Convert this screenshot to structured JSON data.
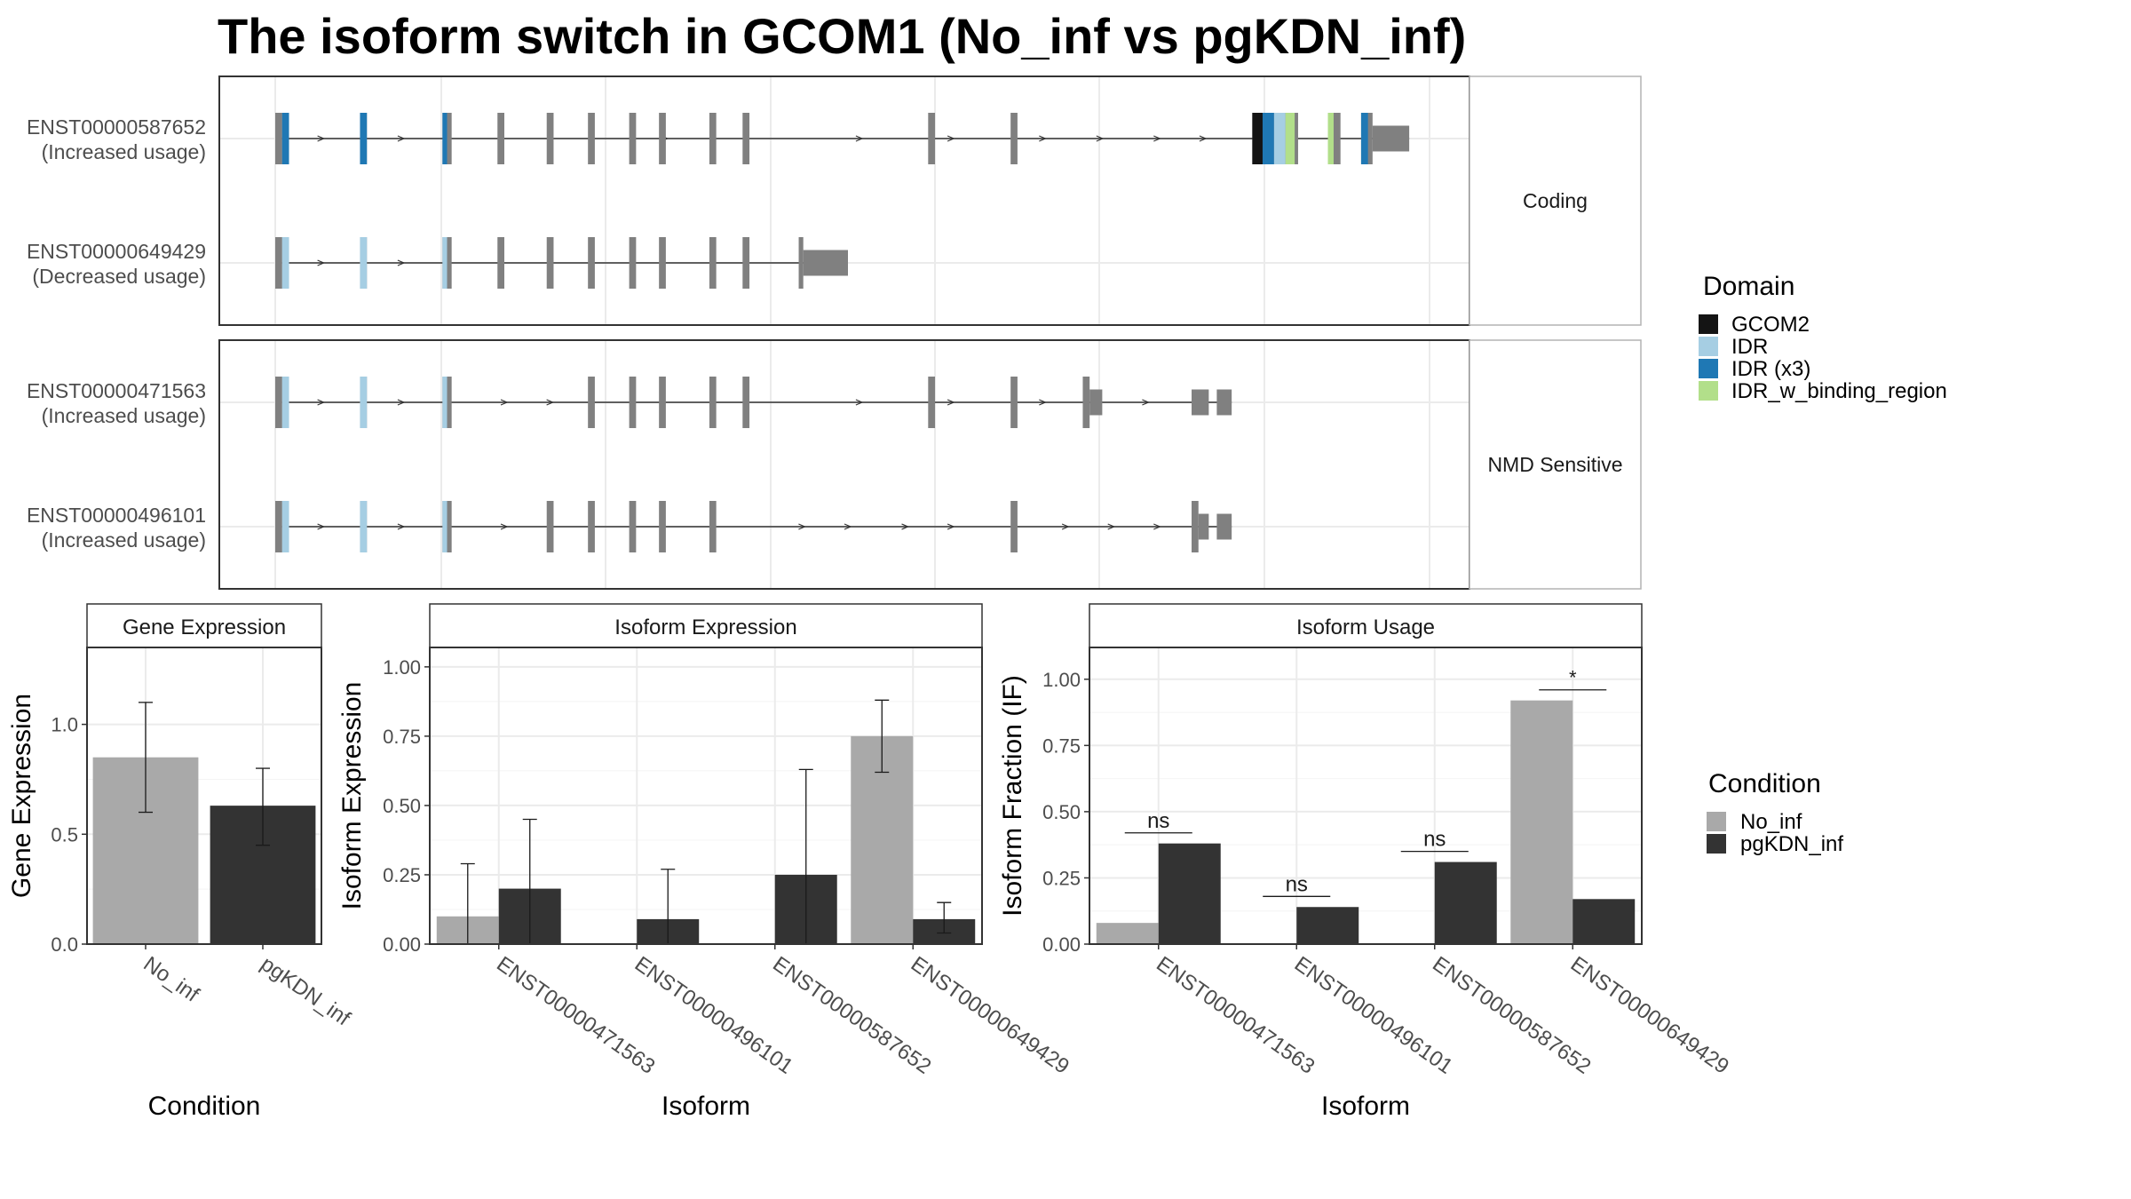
{
  "title": "The isoform switch in GCOM1 (No_inf vs pgKDN_inf)",
  "colors": {
    "No_inf": "#a9a9a9",
    "pgKDN_inf": "#333333",
    "exon": "#808080",
    "GCOM2": "#141414",
    "IDR": "#a6cee3",
    "IDR (x3)": "#1f78b4",
    "IDR_w_binding_region": "#b2df8a"
  },
  "structure": {
    "facets": [
      {
        "label": "Coding",
        "transcripts": [
          {
            "id": "ENST00000587652",
            "usage": "(Increased usage)",
            "exons": [
              [
                0.0,
                0.006,
                "full"
              ],
              [
                0.006,
                0.012,
                "full"
              ],
              [
                0.074,
                0.08,
                "full"
              ],
              [
                0.146,
                0.154,
                "full"
              ],
              [
                0.194,
                0.2,
                "full"
              ],
              [
                0.237,
                0.243,
                "full"
              ],
              [
                0.273,
                0.279,
                "full"
              ],
              [
                0.309,
                0.315,
                "full"
              ],
              [
                0.335,
                0.341,
                "full"
              ],
              [
                0.379,
                0.385,
                "full"
              ],
              [
                0.408,
                0.414,
                "full"
              ],
              [
                0.57,
                0.576,
                "full"
              ],
              [
                0.642,
                0.648,
                "full"
              ],
              [
                0.853,
                0.893,
                "full"
              ],
              [
                0.919,
                0.93,
                "full"
              ],
              [
                0.948,
                0.958,
                "full"
              ],
              [
                0.958,
                0.99,
                "utr"
              ]
            ],
            "domains": [
              [
                0.006,
                0.012,
                "IDR (x3)"
              ],
              [
                0.074,
                0.08,
                "IDR (x3)"
              ],
              [
                0.146,
                0.15,
                "IDR (x3)"
              ],
              [
                0.853,
                0.862,
                "GCOM2"
              ],
              [
                0.862,
                0.872,
                "IDR (x3)"
              ],
              [
                0.872,
                0.882,
                "IDR"
              ],
              [
                0.882,
                0.89,
                "IDR_w_binding_region"
              ],
              [
                0.919,
                0.924,
                "IDR_w_binding_region"
              ],
              [
                0.948,
                0.954,
                "IDR (x3)"
              ]
            ],
            "arrows": [
              0.04,
              0.11,
              0.34,
              0.51,
              0.59,
              0.67,
              0.72,
              0.77,
              0.81
            ]
          },
          {
            "id": "ENST00000649429",
            "usage": "(Decreased usage)",
            "exons": [
              [
                0.0,
                0.006,
                "full"
              ],
              [
                0.006,
                0.012,
                "full"
              ],
              [
                0.074,
                0.08,
                "full"
              ],
              [
                0.146,
                0.154,
                "full"
              ],
              [
                0.194,
                0.2,
                "full"
              ],
              [
                0.237,
                0.243,
                "full"
              ],
              [
                0.273,
                0.279,
                "full"
              ],
              [
                0.309,
                0.315,
                "full"
              ],
              [
                0.335,
                0.341,
                "full"
              ],
              [
                0.379,
                0.385,
                "full"
              ],
              [
                0.408,
                0.414,
                "full"
              ],
              [
                0.457,
                0.461,
                "full"
              ],
              [
                0.461,
                0.5,
                "utr"
              ]
            ],
            "domains": [
              [
                0.006,
                0.012,
                "IDR"
              ],
              [
                0.074,
                0.08,
                "IDR"
              ],
              [
                0.146,
                0.15,
                "IDR"
              ]
            ],
            "arrows": [
              0.04,
              0.11
            ]
          }
        ]
      },
      {
        "label": "NMD Sensitive",
        "transcripts": [
          {
            "id": "ENST00000471563",
            "usage": "(Increased usage)",
            "exons": [
              [
                0.0,
                0.006,
                "full"
              ],
              [
                0.006,
                0.012,
                "full"
              ],
              [
                0.074,
                0.08,
                "full"
              ],
              [
                0.146,
                0.154,
                "full"
              ],
              [
                0.273,
                0.279,
                "full"
              ],
              [
                0.309,
                0.315,
                "full"
              ],
              [
                0.335,
                0.341,
                "full"
              ],
              [
                0.379,
                0.385,
                "full"
              ],
              [
                0.408,
                0.414,
                "full"
              ],
              [
                0.57,
                0.576,
                "full"
              ],
              [
                0.642,
                0.648,
                "full"
              ],
              [
                0.705,
                0.711,
                "full"
              ],
              [
                0.711,
                0.722,
                "utr"
              ],
              [
                0.8,
                0.815,
                "utr"
              ],
              [
                0.822,
                0.835,
                "utr"
              ]
            ],
            "domains": [
              [
                0.006,
                0.012,
                "IDR"
              ],
              [
                0.074,
                0.08,
                "IDR"
              ],
              [
                0.146,
                0.15,
                "IDR"
              ]
            ],
            "arrows": [
              0.04,
              0.11,
              0.2,
              0.24,
              0.51,
              0.59,
              0.67,
              0.76
            ]
          },
          {
            "id": "ENST00000496101",
            "usage": "(Increased usage)",
            "exons": [
              [
                0.0,
                0.006,
                "full"
              ],
              [
                0.006,
                0.012,
                "full"
              ],
              [
                0.074,
                0.08,
                "full"
              ],
              [
                0.146,
                0.154,
                "full"
              ],
              [
                0.237,
                0.243,
                "full"
              ],
              [
                0.273,
                0.279,
                "full"
              ],
              [
                0.309,
                0.315,
                "full"
              ],
              [
                0.335,
                0.341,
                "full"
              ],
              [
                0.379,
                0.385,
                "full"
              ],
              [
                0.642,
                0.648,
                "full"
              ],
              [
                0.8,
                0.806,
                "full"
              ],
              [
                0.806,
                0.815,
                "utr"
              ],
              [
                0.822,
                0.835,
                "utr"
              ]
            ],
            "domains": [
              [
                0.006,
                0.012,
                "IDR"
              ],
              [
                0.074,
                0.08,
                "IDR"
              ],
              [
                0.146,
                0.15,
                "IDR"
              ]
            ],
            "arrows": [
              0.04,
              0.11,
              0.2,
              0.46,
              0.5,
              0.55,
              0.59,
              0.69,
              0.73,
              0.77
            ]
          }
        ]
      }
    ],
    "domain_legend": {
      "title": "Domain",
      "items": [
        "GCOM2",
        "IDR",
        "IDR (x3)",
        "IDR_w_binding_region"
      ]
    }
  },
  "chart_data": [
    {
      "type": "bar",
      "panel": "Gene Expression",
      "xlabel": "Condition",
      "ylabel": "Gene Expression",
      "categories": [
        "No_inf",
        "pgKDN_inf"
      ],
      "values": [
        0.85,
        0.63
      ],
      "errors": [
        [
          0.6,
          1.1
        ],
        [
          0.45,
          0.8
        ]
      ],
      "ylim": [
        0,
        1.35
      ],
      "yticks": [
        0.0,
        0.5,
        1.0
      ],
      "ytick_labels": [
        "0.0",
        "0.5",
        "1.0"
      ]
    },
    {
      "type": "bar",
      "panel": "Isoform Expression",
      "xlabel": "Isoform",
      "ylabel": "Isoform Expression",
      "categories": [
        "ENST00000471563",
        "ENST00000496101",
        "ENST00000587652",
        "ENST00000649429"
      ],
      "series": [
        {
          "name": "No_inf",
          "values": [
            0.1,
            0.0,
            0.0,
            0.75
          ],
          "errors": [
            [
              0.0,
              0.29
            ],
            null,
            null,
            [
              0.62,
              0.88
            ]
          ]
        },
        {
          "name": "pgKDN_inf",
          "values": [
            0.2,
            0.09,
            0.25,
            0.09
          ],
          "errors": [
            [
              0.0,
              0.45
            ],
            [
              0.0,
              0.27
            ],
            [
              0.0,
              0.63
            ],
            [
              0.04,
              0.15
            ]
          ]
        }
      ],
      "ylim": [
        0,
        1.07
      ],
      "yticks": [
        0.0,
        0.25,
        0.5,
        0.75,
        1.0
      ],
      "ytick_labels": [
        "0.00",
        "0.25",
        "0.50",
        "0.75",
        "1.00"
      ]
    },
    {
      "type": "bar",
      "panel": "Isoform Usage",
      "xlabel": "Isoform",
      "ylabel": "Isoform Fraction (IF)",
      "categories": [
        "ENST00000471563",
        "ENST00000496101",
        "ENST00000587652",
        "ENST00000649429"
      ],
      "series": [
        {
          "name": "No_inf",
          "values": [
            0.08,
            0.0,
            0.0,
            0.92
          ]
        },
        {
          "name": "pgKDN_inf",
          "values": [
            0.38,
            0.14,
            0.31,
            0.17
          ]
        }
      ],
      "significance": [
        "ns",
        "ns",
        "ns",
        "*"
      ],
      "ylim": [
        0,
        1.12
      ],
      "yticks": [
        0.0,
        0.25,
        0.5,
        0.75,
        1.0
      ],
      "ytick_labels": [
        "0.00",
        "0.25",
        "0.50",
        "0.75",
        "1.00"
      ]
    }
  ],
  "condition_legend": {
    "title": "Condition",
    "items": [
      "No_inf",
      "pgKDN_inf"
    ]
  }
}
